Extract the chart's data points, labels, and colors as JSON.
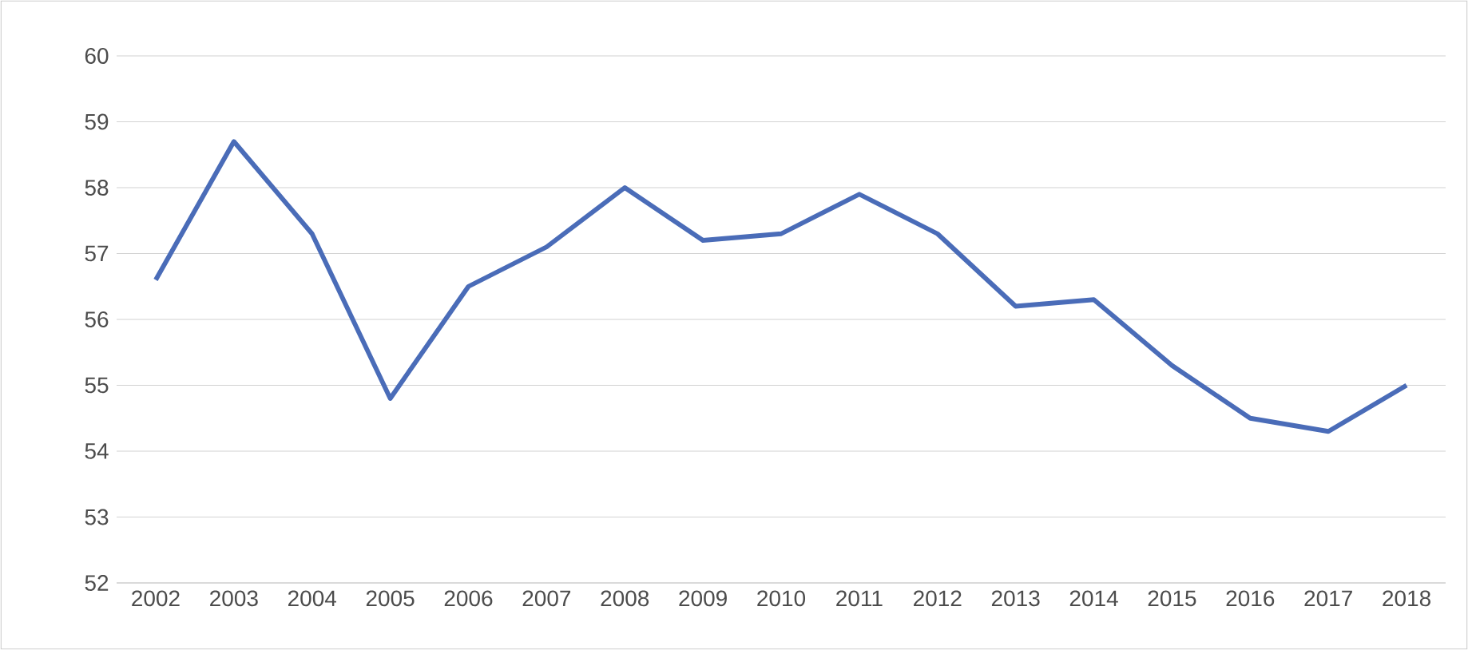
{
  "chart_data": {
    "type": "line",
    "categories": [
      "2002",
      "2003",
      "2004",
      "2005",
      "2006",
      "2007",
      "2008",
      "2009",
      "2010",
      "2011",
      "2012",
      "2013",
      "2014",
      "2015",
      "2016",
      "2017",
      "2018"
    ],
    "values": [
      56.6,
      58.7,
      57.3,
      54.8,
      56.5,
      57.1,
      58.0,
      57.2,
      57.3,
      57.9,
      57.3,
      56.2,
      56.3,
      55.3,
      54.5,
      54.3,
      55.0
    ],
    "color": "#4a6cb8",
    "ylim": [
      52,
      60
    ],
    "yticks": [
      52,
      53,
      54,
      55,
      56,
      57,
      58,
      59,
      60
    ],
    "grid": "y"
  }
}
